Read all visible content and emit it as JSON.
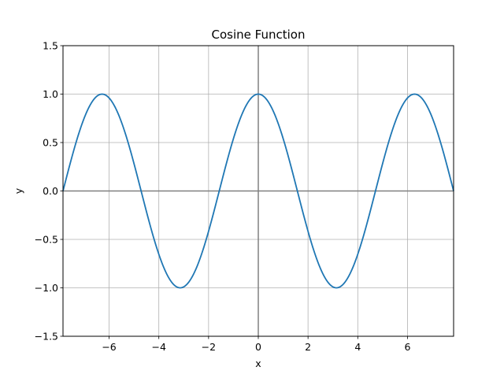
{
  "chart_data": {
    "type": "line",
    "title": "Cosine Function",
    "xlabel": "x",
    "ylabel": "y",
    "xlim": [
      -7.854,
      7.854
    ],
    "ylim": [
      -1.5,
      1.5
    ],
    "x_ticks": [
      -6,
      -4,
      -2,
      0,
      2,
      4,
      6
    ],
    "x_tick_labels": [
      "−6",
      "−4",
      "−2",
      "0",
      "2",
      "4",
      "6"
    ],
    "y_ticks": [
      -1.5,
      -1.0,
      -0.5,
      0.0,
      0.5,
      1.0,
      1.5
    ],
    "y_tick_labels": [
      "−1.5",
      "−1.0",
      "−0.5",
      "0.0",
      "0.5",
      "1.0",
      "1.5"
    ],
    "grid": true,
    "reference_lines": {
      "x": 0,
      "y": 0
    },
    "series": [
      {
        "name": "cos(x)",
        "function": "cos",
        "x_range": [
          -7.854,
          7.854
        ],
        "samples": 400
      }
    ],
    "colors": {
      "line": "#1f77b4",
      "grid": "#b0b0b0",
      "reference": "#808080",
      "spine": "#000000"
    }
  }
}
